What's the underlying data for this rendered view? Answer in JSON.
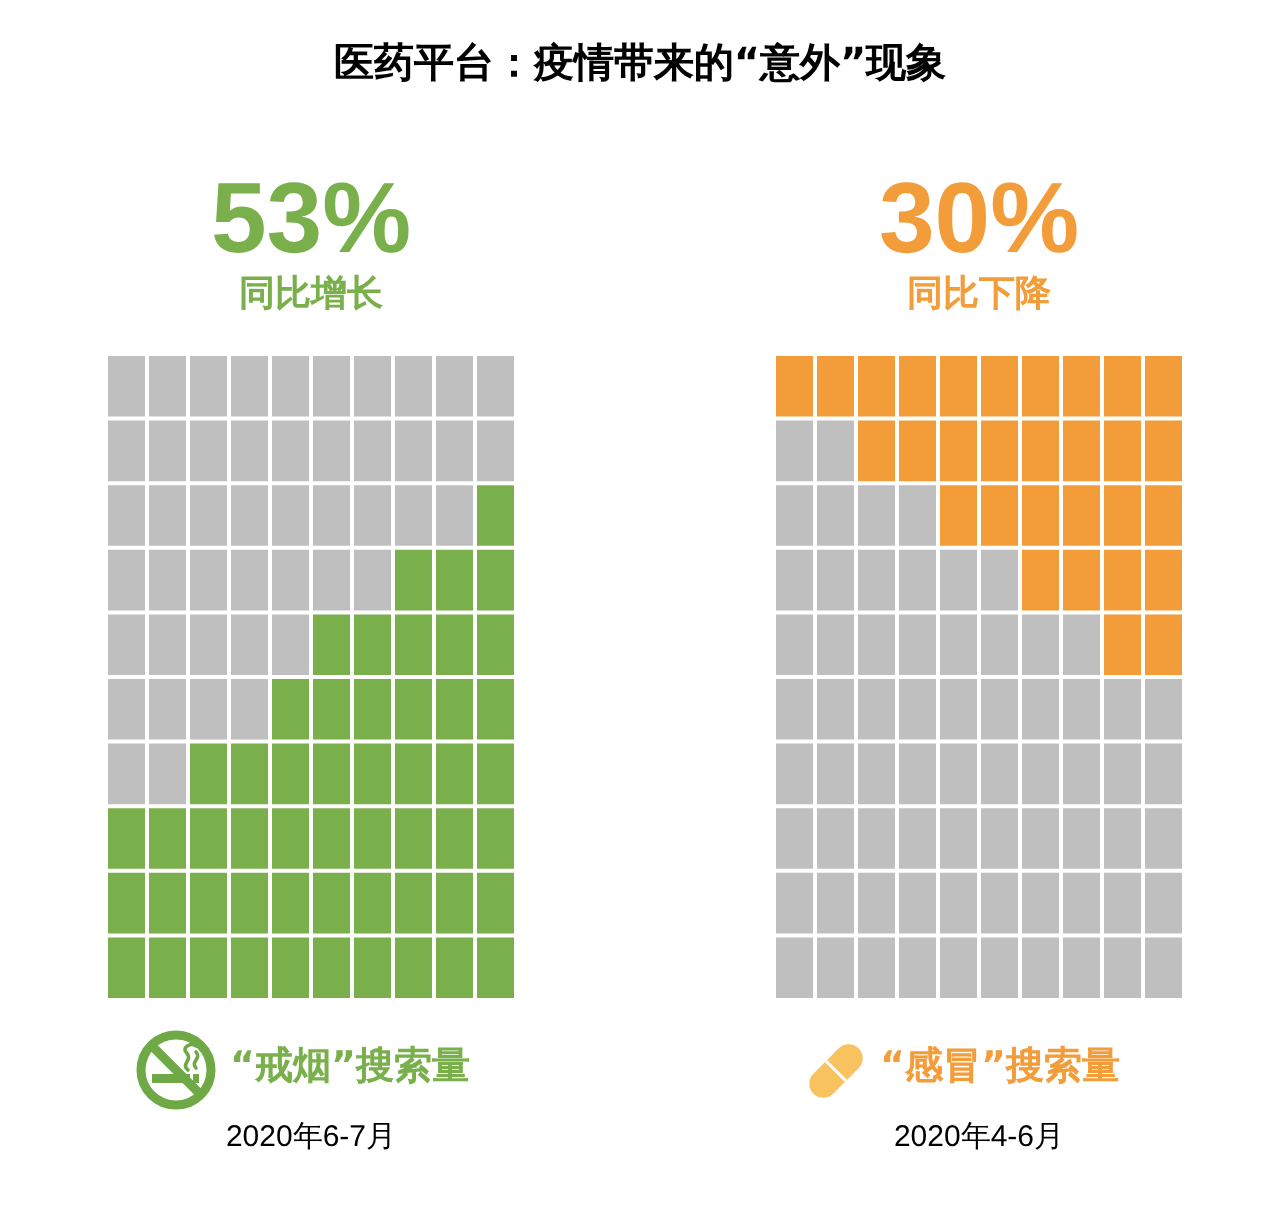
{
  "chart_data": {
    "type": "other",
    "title": "医药平台：疫情带来的“意外”现象",
    "categories": [
      "“戒烟”搜索量",
      "“感冒”搜索量"
    ],
    "values": [
      53,
      30
    ],
    "value_labels": [
      "53%",
      "30%"
    ],
    "colors": [
      "#7ab04b",
      "#f29c3a"
    ],
    "annotations": [
      "同比增长",
      "同比下降",
      "2020年6-7月",
      "2020年4-6月"
    ]
  }
}
